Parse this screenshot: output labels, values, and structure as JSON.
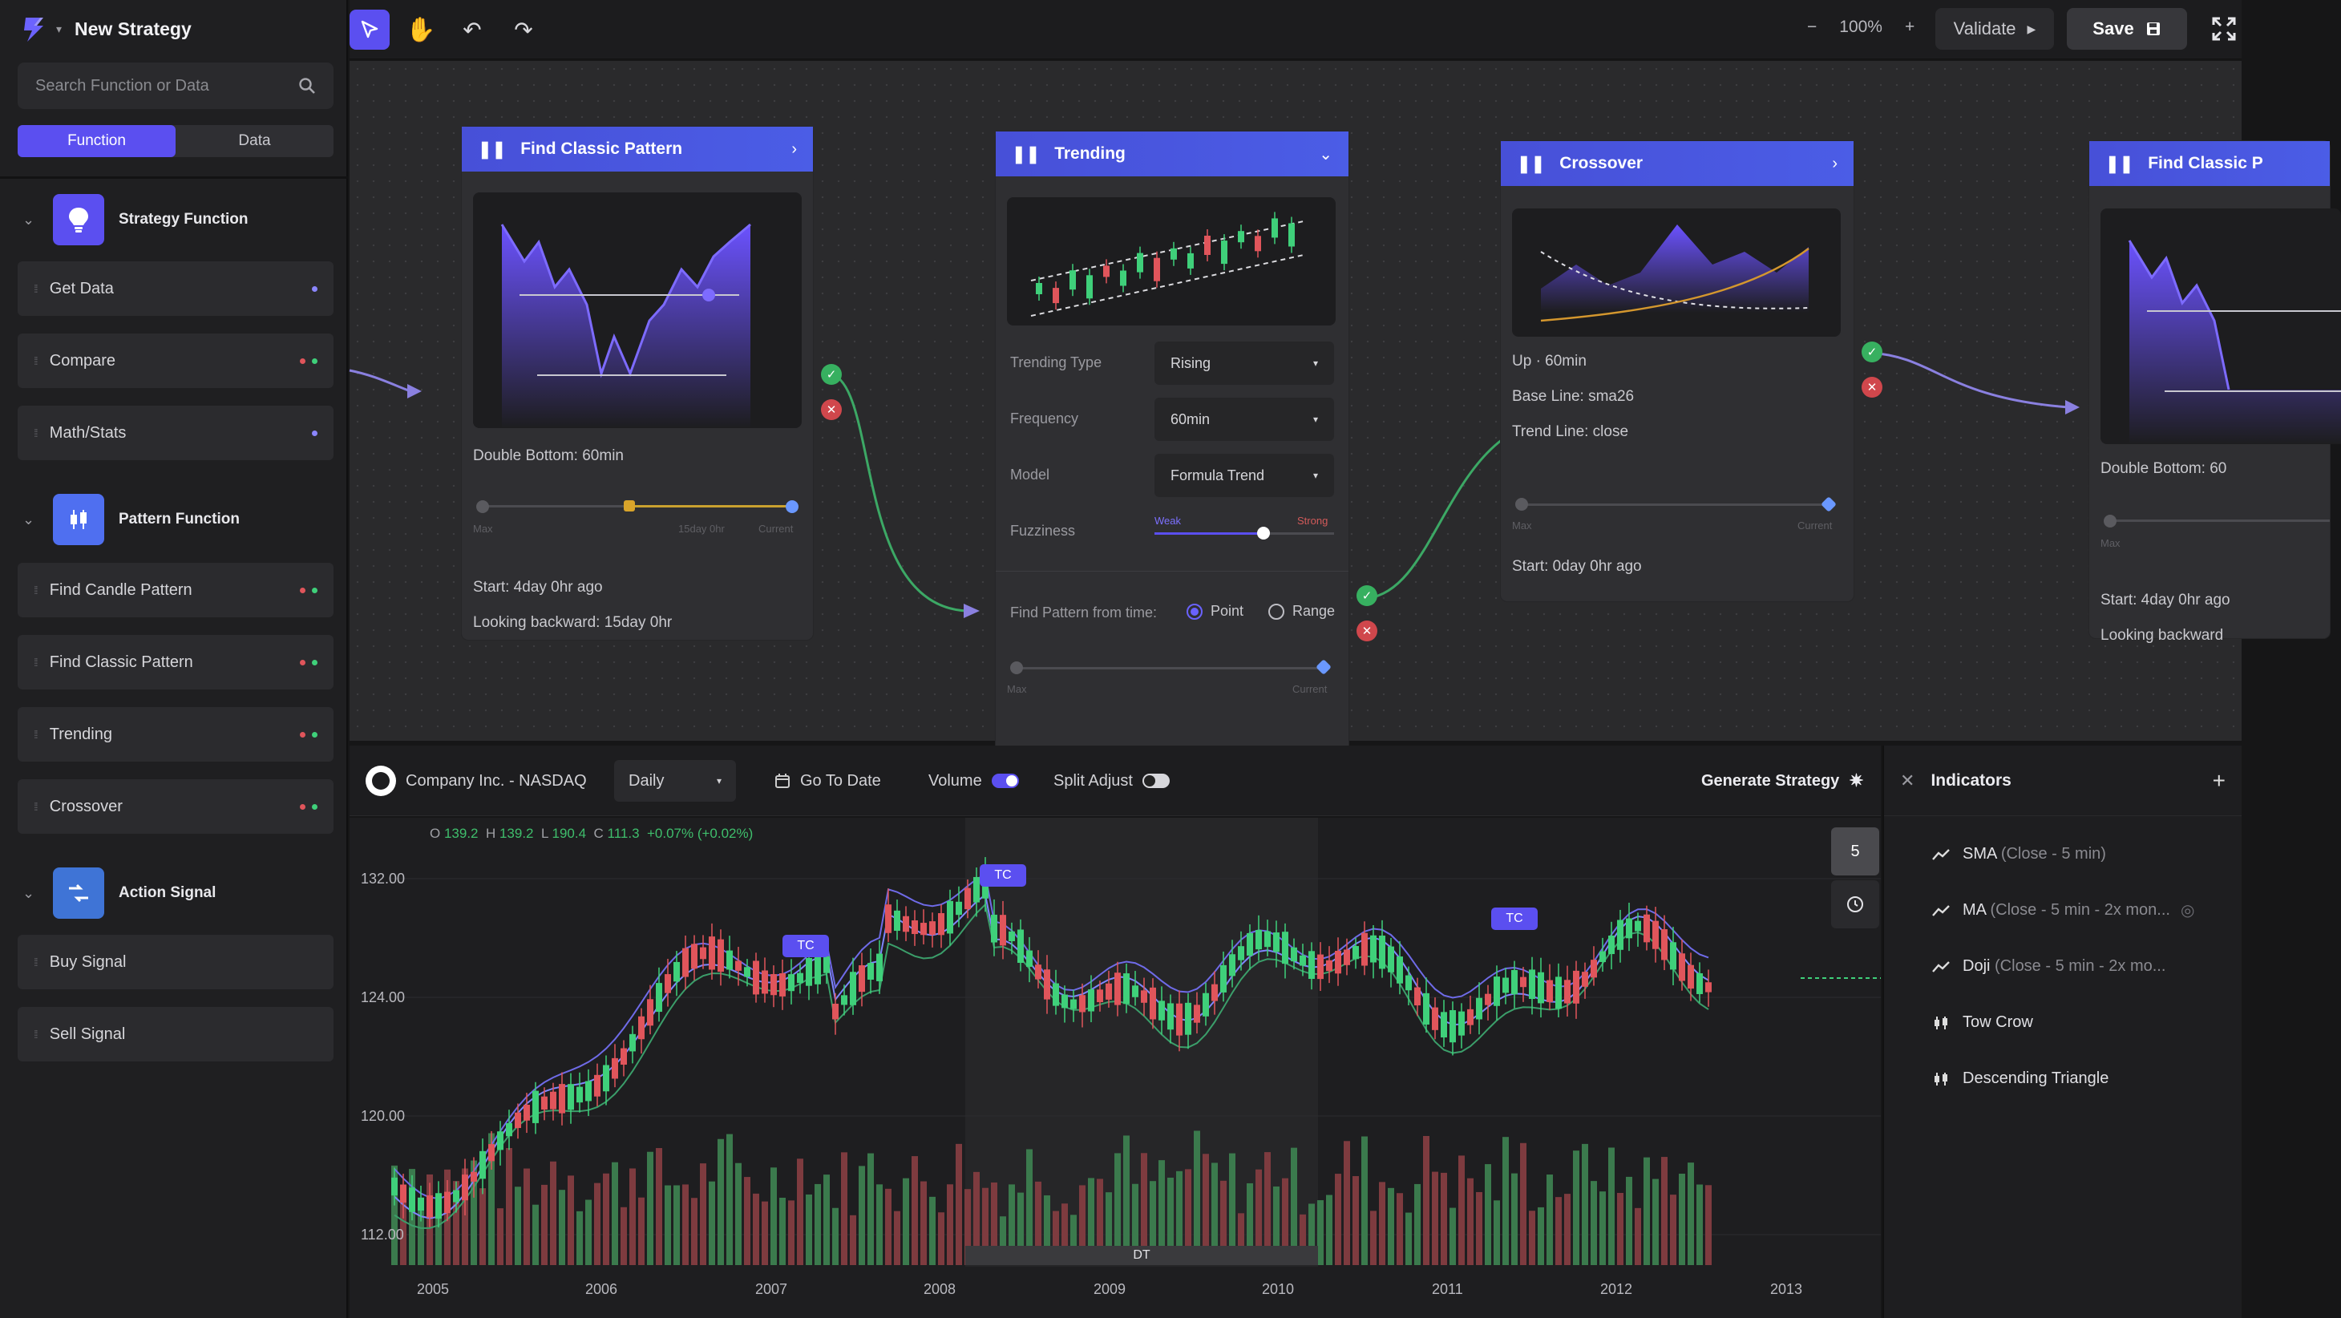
{
  "header": {
    "title": "New Strategy"
  },
  "search": {
    "placeholder": "Search Function or Data"
  },
  "sidebar": {
    "tabs": [
      "Function",
      "Data"
    ],
    "sections": [
      {
        "label": "Strategy Function",
        "items": [
          "Get Data",
          "Compare",
          "Math/Stats"
        ]
      },
      {
        "label": "Pattern Function",
        "items": [
          "Find Candle Pattern",
          "Find Classic Pattern",
          "Trending",
          "Crossover"
        ]
      },
      {
        "label": "Action Signal",
        "items": [
          "Buy Signal",
          "Sell Signal"
        ]
      }
    ]
  },
  "toolbar": {
    "zoom": "100%",
    "zoom_out": "−",
    "zoom_in": "+",
    "validate_label": "Validate",
    "save_label": "Save"
  },
  "nodes": {
    "classic": {
      "title": "Find Classic Pattern",
      "desc": "Double Bottom: 60min",
      "slider_left": "Max",
      "slider_mid": "15day 0hr",
      "slider_right": "Current",
      "start": "Start: 4day 0hr ago",
      "looking": "Looking backward: 15day 0hr"
    },
    "trending": {
      "title": "Trending",
      "type_label": "Trending Type",
      "type_value": "Rising",
      "freq_label": "Frequency",
      "freq_value": "60min",
      "model_label": "Model",
      "model_value": "Formula Trend",
      "fuzz_label": "Fuzziness",
      "fuzz_weak": "Weak",
      "fuzz_strong": "Strong",
      "find_label": "Find Pattern from time:",
      "point": "Point",
      "range": "Range",
      "slider_left": "Max",
      "slider_right": "Current"
    },
    "crossover": {
      "title": "Crossover",
      "line1": "Up · 60min",
      "line2": "Base Line: sma26",
      "line3": "Trend Line: close",
      "slider_left": "Max",
      "slider_right": "Current",
      "start": "Start: 0day 0hr ago"
    },
    "classic2": {
      "title": "Find Classic P",
      "desc": "Double Bottom: 60",
      "slider_left": "Max",
      "start": "Start: 4day 0hr ago",
      "looking": "Looking backward"
    }
  },
  "chartbar": {
    "symbol": "Company Inc. - NASDAQ",
    "interval": "Daily",
    "goto": "Go To Date",
    "volume": "Volume",
    "split": "Split Adjust",
    "generate": "Generate Strategy"
  },
  "chart_data": {
    "type": "candlestick",
    "ohlc": {
      "o": "139.2",
      "h": "139.2",
      "l": "190.4",
      "c": "111.3",
      "change": "+0.07% (+0.02%)"
    },
    "y_ticks": [
      "132.00",
      "124.00",
      "120.00",
      "112.00"
    ],
    "x_ticks": [
      "2005",
      "2006",
      "2007",
      "2008",
      "2009",
      "2010",
      "2011",
      "2012",
      "2013"
    ],
    "tags": [
      "TC",
      "TC",
      "TC"
    ],
    "range_label": "DT",
    "side_value": "5"
  },
  "indicators": {
    "title": "Indicators",
    "items": [
      {
        "name": "SMA",
        "sub": "(Close - 5 min)",
        "icon": "line"
      },
      {
        "name": "MA",
        "sub": "(Close - 5 min - 2x mon...",
        "icon": "line"
      },
      {
        "name": "Doji",
        "sub": "(Close - 5 min - 2x mo...",
        "icon": "line"
      },
      {
        "name": "Tow Crow",
        "sub": "",
        "icon": "candle"
      },
      {
        "name": "Descending Triangle",
        "sub": "",
        "icon": "candle"
      }
    ]
  },
  "colors": {
    "accent": "#5b4ff0",
    "up": "#3fd07a",
    "down": "#e0555b",
    "node_header": "#4b5de6"
  }
}
